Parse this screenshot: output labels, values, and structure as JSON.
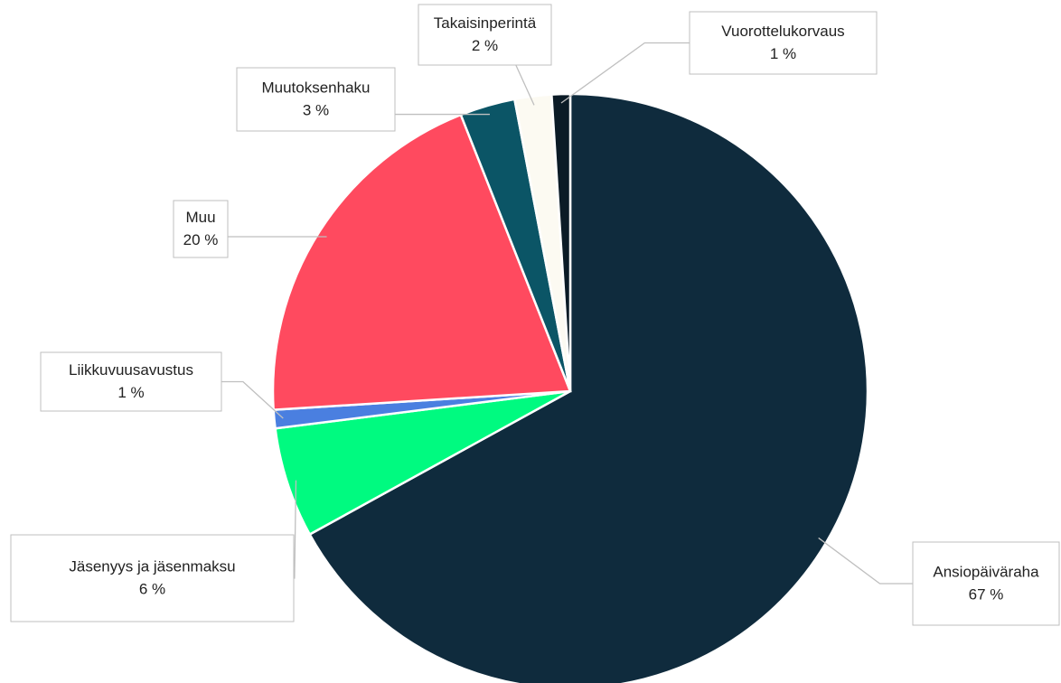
{
  "chart_data": {
    "type": "pie",
    "categories": [
      "Ansiopäiväraha",
      "Jäsenyys ja jäsenmaksu",
      "Liikkuvuusavustus",
      "Muu",
      "Muutoksenhaku",
      "Takaisinperintä",
      "Vuorottelukorvaus"
    ],
    "values": [
      67,
      6,
      1,
      20,
      3,
      2,
      1
    ],
    "value_labels": [
      "67 %",
      "6 %",
      "1 %",
      "20 %",
      "3 %",
      "2 %",
      "1 %"
    ],
    "colors": [
      "#0f2b3d",
      "#00fa80",
      "#4a7fe0",
      "#ff4a5f",
      "#0b5566",
      "#fcfaf2",
      "#0b1b26"
    ]
  }
}
